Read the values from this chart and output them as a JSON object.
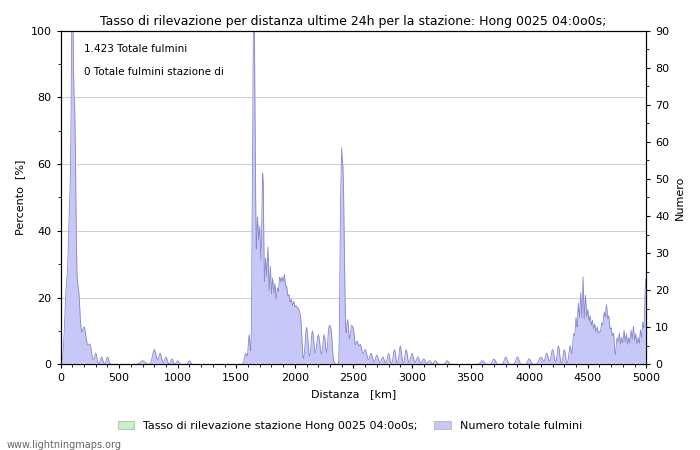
{
  "title": "Tasso di rilevazione per distanza ultime 24h per la stazione: Hong 0025 04:0o0s;",
  "xlabel": "Distanza   [km]",
  "ylabel_left": "Percento  [%]",
  "ylabel_right": "Numero",
  "xlim": [
    0,
    5000
  ],
  "ylim_left": [
    0,
    100
  ],
  "ylim_right": [
    0,
    90
  ],
  "yticks_left": [
    0,
    20,
    40,
    60,
    80,
    100
  ],
  "yticks_right": [
    0,
    10,
    20,
    30,
    40,
    50,
    60,
    70,
    80,
    90
  ],
  "xticks": [
    0,
    500,
    1000,
    1500,
    2000,
    2500,
    3000,
    3500,
    4000,
    4500,
    5000
  ],
  "annotation_line1": "1.423 Totale fulmini",
  "annotation_line2": "0 Totale fulmini stazione di",
  "legend_label1": "Tasso di rilevazione stazione Hong 0025 04:0o0s;",
  "legend_label2": "Numero totale fulmini",
  "watermark": "www.lightningmaps.org",
  "fill_color_green": "#c8f0c8",
  "fill_color_blue": "#c8c8f8",
  "line_color": "#8888cc",
  "bg_color": "#ffffff",
  "grid_color": "#bbbbbb"
}
